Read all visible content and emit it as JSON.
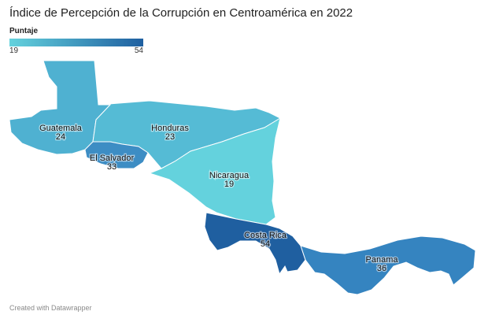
{
  "title": "Índice de Percepción de la Corrupción en Centroamérica en 2022",
  "legend": {
    "title": "Puntaje",
    "min_label": "19",
    "max_label": "54",
    "color_low": "#64d2dd",
    "color_high": "#1f5fa0"
  },
  "countries": [
    {
      "name": "Guatemala",
      "score": "24",
      "color": "#4fb1d1"
    },
    {
      "name": "Honduras",
      "score": "23",
      "color": "#55bbd5"
    },
    {
      "name": "El Salvador",
      "score": "33",
      "color": "#3d8dc4"
    },
    {
      "name": "Nicaragua",
      "score": "19",
      "color": "#64d2dd"
    },
    {
      "name": "Costa Rica",
      "score": "54",
      "color": "#1f5fa0"
    },
    {
      "name": "Panama",
      "score": "36",
      "color": "#3584c0"
    }
  ],
  "footer": "Created with Datawrapper"
}
